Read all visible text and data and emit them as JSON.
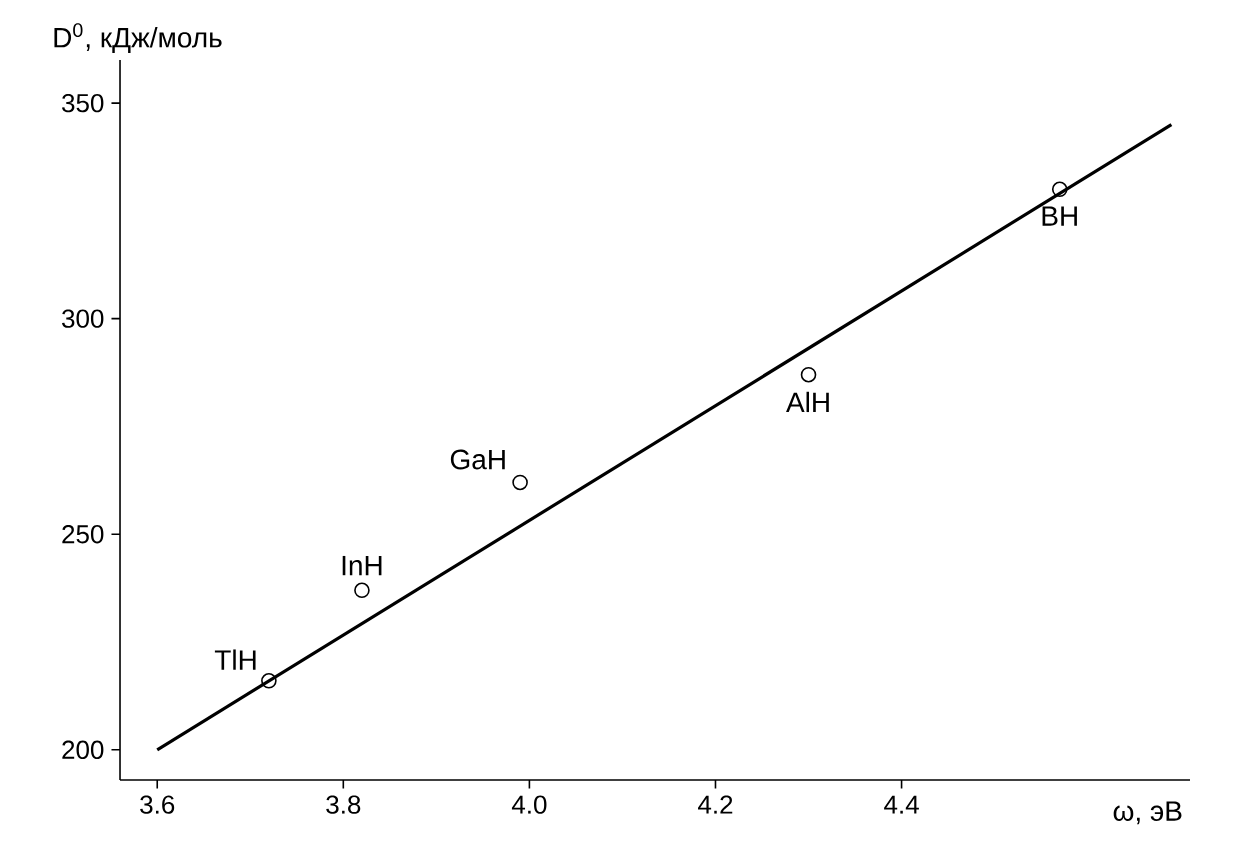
{
  "chart_data": {
    "type": "scatter",
    "xlabel": "ω, эВ",
    "ylabel": "D$^{0}$, кДж/моль",
    "xlim": [
      3.56,
      4.71
    ],
    "ylim": [
      193,
      360
    ],
    "xticks": [
      3.6,
      3.8,
      {
        "value": 4.0,
        "label": "4.0"
      },
      4.2,
      4.4
    ],
    "yticks": [
      200,
      250,
      300,
      350
    ],
    "grid": false,
    "marker": "circle",
    "series": [
      {
        "color": "#000000",
        "x": [
          3.72,
          3.82,
          3.99,
          4.3,
          4.57
        ],
        "values": [
          216,
          237,
          262,
          287,
          330
        ]
      },
      {
        "type": "line",
        "marker": "none",
        "color": "#000000",
        "x": [
          3.6,
          4.69
        ],
        "values": [
          200,
          345
        ]
      }
    ],
    "annotations": [
      {
        "text": "TlH",
        "x": 3.72,
        "y": 216
      },
      {
        "text": "InH",
        "x": 3.82,
        "y": 237
      },
      {
        "text": "GaH",
        "x": 3.99,
        "y": 262
      },
      {
        "text": "AlH",
        "x": 4.3,
        "y": 287
      },
      {
        "text": "BH",
        "x": 4.57,
        "y": 330
      }
    ]
  }
}
